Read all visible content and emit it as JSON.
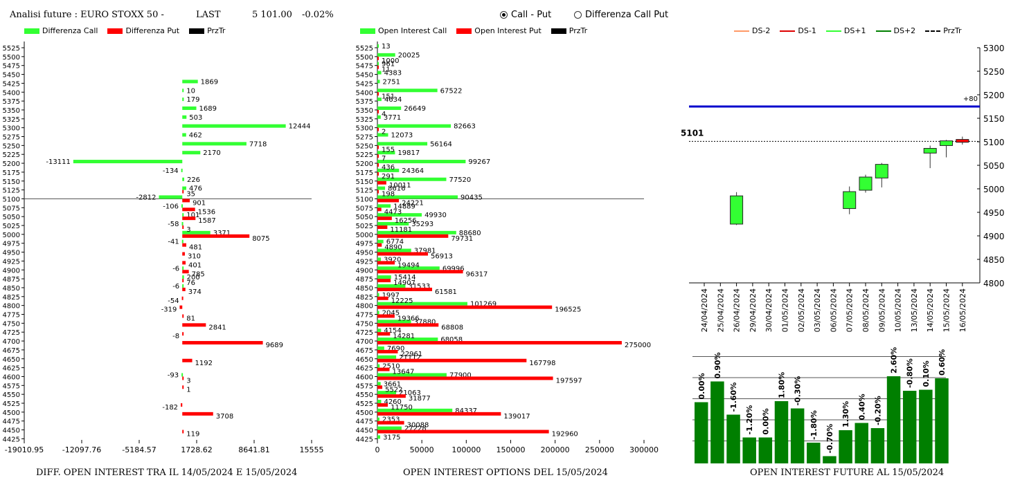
{
  "header": {
    "title": "Analisi future : EURO STOXX 50 -",
    "last_label": "LAST",
    "last_value": "5 101.00",
    "change": "-0.02%"
  },
  "mode_selector": {
    "options": [
      "Call - Put",
      "Differenza Call Put"
    ],
    "selected": "Call - Put"
  },
  "colors": {
    "call": "#33ff33",
    "put": "#ff0000",
    "price_line": "#000000",
    "ma_line": "#0000cc",
    "candle_up": "#33ff33",
    "candle_down": "#ff0000",
    "bar_green": "#007f00"
  },
  "footers": {
    "left": "DIFF. OPEN INTEREST TRA IL 14/05/2024 E 15/05/2024",
    "middle": "OPEN INTEREST OPTIONS DEL 15/05/2024",
    "right": "OPEN INTEREST FUTURE AL 15/05/2024"
  },
  "chart_data": [
    {
      "type": "bar",
      "orientation": "horizontal",
      "series": [
        {
          "name": "Differenza Call",
          "color": "#33ff33"
        },
        {
          "name": "Differenza Put",
          "color": "#ff0000"
        },
        {
          "name": "PrzTr",
          "color": "#000000"
        }
      ],
      "strikes": [
        5525,
        5500,
        5475,
        5450,
        5425,
        5400,
        5375,
        5350,
        5325,
        5300,
        5275,
        5250,
        5225,
        5200,
        5175,
        5150,
        5125,
        5100,
        5075,
        5050,
        5025,
        5000,
        4975,
        4950,
        4925,
        4900,
        4875,
        4850,
        4825,
        4800,
        4775,
        4750,
        4725,
        4700,
        4675,
        4650,
        4625,
        4600,
        4575,
        4550,
        4525,
        4500,
        4475,
        4450,
        4425
      ],
      "call_diff": [
        {
          "strike": 5425,
          "value": 1869
        },
        {
          "strike": 5400,
          "value": 10
        },
        {
          "strike": 5375,
          "value": 179
        },
        {
          "strike": 5350,
          "value": 1689
        },
        {
          "strike": 5325,
          "value": 503
        },
        {
          "strike": 5300,
          "value": 12444
        },
        {
          "strike": 5275,
          "value": 462
        },
        {
          "strike": 5250,
          "value": 7718
        },
        {
          "strike": 5225,
          "value": 2170
        },
        {
          "strike": 5200,
          "value": -13111
        },
        {
          "strike": 5175,
          "value": -134
        },
        {
          "strike": 5150,
          "value": 226
        },
        {
          "strike": 5125,
          "value": 476
        },
        {
          "strike": 5100,
          "value": -2812
        },
        {
          "strike": 5075,
          "value": -106
        },
        {
          "strike": 5050,
          "value": 101
        },
        {
          "strike": 5025,
          "value": -58
        },
        {
          "strike": 5000,
          "value": 3371
        },
        {
          "strike": 4975,
          "value": -41
        },
        {
          "strike": 4900,
          "value": -6
        },
        {
          "strike": 4875,
          "value": 200
        },
        {
          "strike": 4850,
          "value": -6
        },
        {
          "strike": 4600,
          "value": -93
        }
      ],
      "put_diff": [
        {
          "strike": 5125,
          "value": 35
        },
        {
          "strike": 5100,
          "value": 901
        },
        {
          "strike": 5075,
          "value": 1536
        },
        {
          "strike": 5050,
          "value": 1587
        },
        {
          "strike": 5025,
          "value": 3
        },
        {
          "strike": 5000,
          "value": 8075
        },
        {
          "strike": 4975,
          "value": 481
        },
        {
          "strike": 4950,
          "value": 310
        },
        {
          "strike": 4925,
          "value": 401
        },
        {
          "strike": 4900,
          "value": 785
        },
        {
          "strike": 4875,
          "value": 76
        },
        {
          "strike": 4850,
          "value": 374
        },
        {
          "strike": 4825,
          "value": -54
        },
        {
          "strike": 4800,
          "value": -319
        },
        {
          "strike": 4775,
          "value": 81
        },
        {
          "strike": 4750,
          "value": 2841
        },
        {
          "strike": 4725,
          "value": -8
        },
        {
          "strike": 4700,
          "value": 9689
        },
        {
          "strike": 4650,
          "value": 1192
        },
        {
          "strike": 4600,
          "value": 3
        },
        {
          "strike": 4575,
          "value": 1
        },
        {
          "strike": 4525,
          "value": -182
        },
        {
          "strike": 4500,
          "value": 3708
        },
        {
          "strike": 4450,
          "value": 119
        }
      ],
      "price_line": 5100,
      "xticks": [
        "-19010.95",
        "-12097.76",
        "-5184.57",
        "1728.62",
        "8641.81",
        "15555"
      ],
      "xlim": [
        -19010.95,
        15555
      ]
    },
    {
      "type": "bar",
      "orientation": "horizontal",
      "series": [
        {
          "name": "Open Interest Call",
          "color": "#33ff33"
        },
        {
          "name": "Open Interest Put",
          "color": "#ff0000"
        },
        {
          "name": "PrzTr",
          "color": "#000000"
        }
      ],
      "strikes": [
        5525,
        5500,
        5475,
        5450,
        5425,
        5400,
        5375,
        5350,
        5325,
        5300,
        5275,
        5250,
        5225,
        5200,
        5175,
        5150,
        5125,
        5100,
        5075,
        5050,
        5025,
        5000,
        4975,
        4950,
        4925,
        4900,
        4875,
        4850,
        4825,
        4800,
        4775,
        4750,
        4725,
        4700,
        4675,
        4650,
        4625,
        4600,
        4575,
        4550,
        4525,
        4500,
        4475,
        4450,
        4425
      ],
      "open_interest_call": [
        {
          "strike": 5525,
          "value": 13
        },
        {
          "strike": 5500,
          "value": 20025
        },
        {
          "strike": 5475,
          "value": 961
        },
        {
          "strike": 5450,
          "value": 4383
        },
        {
          "strike": 5425,
          "value": 2751
        },
        {
          "strike": 5400,
          "value": 67522
        },
        {
          "strike": 5375,
          "value": 4634
        },
        {
          "strike": 5350,
          "value": 26649
        },
        {
          "strike": 5325,
          "value": 3771
        },
        {
          "strike": 5300,
          "value": 82663
        },
        {
          "strike": 5275,
          "value": 12073
        },
        {
          "strike": 5250,
          "value": 56164
        },
        {
          "strike": 5225,
          "value": 19817
        },
        {
          "strike": 5200,
          "value": 99267
        },
        {
          "strike": 5175,
          "value": 24364
        },
        {
          "strike": 5150,
          "value": 77520
        },
        {
          "strike": 5125,
          "value": 8616
        },
        {
          "strike": 5100,
          "value": 90435
        },
        {
          "strike": 5075,
          "value": 14889
        },
        {
          "strike": 5050,
          "value": 49930
        },
        {
          "strike": 5025,
          "value": 35293
        },
        {
          "strike": 5000,
          "value": 88680
        },
        {
          "strike": 4975,
          "value": 6774
        },
        {
          "strike": 4950,
          "value": 37981
        },
        {
          "strike": 4925,
          "value": 3920
        },
        {
          "strike": 4900,
          "value": 69996
        },
        {
          "strike": 4875,
          "value": 15414
        },
        {
          "strike": 4850,
          "value": 31533
        },
        {
          "strike": 4825,
          "value": 1997
        },
        {
          "strike": 4800,
          "value": 101269
        },
        {
          "strike": 4775,
          "value": 2045
        },
        {
          "strike": 4750,
          "value": 37880
        },
        {
          "strike": 4725,
          "value": 4154
        },
        {
          "strike": 4700,
          "value": 68058
        },
        {
          "strike": 4675,
          "value": 7690
        },
        {
          "strike": 4650,
          "value": 21112
        },
        {
          "strike": 4625,
          "value": 2510
        },
        {
          "strike": 4600,
          "value": 77900
        },
        {
          "strike": 4575,
          "value": 3661
        },
        {
          "strike": 4550,
          "value": 21063
        },
        {
          "strike": 4525,
          "value": 4260
        },
        {
          "strike": 4500,
          "value": 84337
        },
        {
          "strike": 4475,
          "value": 2353
        },
        {
          "strike": 4450,
          "value": 27228
        },
        {
          "strike": 4425,
          "value": 3175
        }
      ],
      "open_interest_put": [
        {
          "strike": 5500,
          "value": 1000
        },
        {
          "strike": 5475,
          "value": 11
        },
        {
          "strike": 5400,
          "value": 151
        },
        {
          "strike": 5350,
          "value": 4
        },
        {
          "strike": 5300,
          "value": 2
        },
        {
          "strike": 5250,
          "value": 155
        },
        {
          "strike": 5225,
          "value": 7
        },
        {
          "strike": 5200,
          "value": 436
        },
        {
          "strike": 5175,
          "value": 291
        },
        {
          "strike": 5150,
          "value": 10011
        },
        {
          "strike": 5125,
          "value": 198
        },
        {
          "strike": 5100,
          "value": 24221
        },
        {
          "strike": 5075,
          "value": 4473
        },
        {
          "strike": 5050,
          "value": 16256
        },
        {
          "strike": 5025,
          "value": 11181
        },
        {
          "strike": 5000,
          "value": 79731
        },
        {
          "strike": 4975,
          "value": 4890
        },
        {
          "strike": 4950,
          "value": 56913
        },
        {
          "strike": 4925,
          "value": 19494
        },
        {
          "strike": 4900,
          "value": 96317
        },
        {
          "strike": 4875,
          "value": 14907
        },
        {
          "strike": 4850,
          "value": 61581
        },
        {
          "strike": 4825,
          "value": 12225
        },
        {
          "strike": 4800,
          "value": 196525
        },
        {
          "strike": 4775,
          "value": 19366
        },
        {
          "strike": 4750,
          "value": 68808
        },
        {
          "strike": 4725,
          "value": 14281
        },
        {
          "strike": 4700,
          "value": 275000
        },
        {
          "strike": 4675,
          "value": 22961
        },
        {
          "strike": 4650,
          "value": 167798
        },
        {
          "strike": 4625,
          "value": 13647
        },
        {
          "strike": 4600,
          "value": 197597
        },
        {
          "strike": 4575,
          "value": 5522
        },
        {
          "strike": 4550,
          "value": 31877
        },
        {
          "strike": 4525,
          "value": 11750
        },
        {
          "strike": 4500,
          "value": 139017
        },
        {
          "strike": 4475,
          "value": 30088
        },
        {
          "strike": 4450,
          "value": 192960
        }
      ],
      "price_line": 5100,
      "xticks": [
        "0",
        "50000",
        "100000",
        "150000",
        "200000",
        "250000",
        "300000"
      ],
      "xlim": [
        0,
        300000
      ]
    },
    {
      "type": "candlestick",
      "legend": [
        "DS-2",
        "DS-1",
        "DS+1",
        "DS+2",
        "PrzTr"
      ],
      "dates": [
        "24/04/2024",
        "25/04/2024",
        "26/04/2024",
        "29/04/2024",
        "30/04/2024",
        "01/05/2024",
        "02/05/2024",
        "03/05/2024",
        "06/05/2024",
        "07/05/2024",
        "08/05/2024",
        "09/05/2024",
        "10/05/2024",
        "13/05/2024",
        "14/05/2024",
        "15/05/2024",
        "16/05/2024"
      ],
      "candles": [
        {
          "date": "26/04/2024",
          "open": 4925,
          "close": 4985,
          "high": 4993,
          "low": 4923
        },
        {
          "date": "07/05/2024",
          "open": 4958,
          "close": 4994,
          "high": 5005,
          "low": 4946
        },
        {
          "date": "08/05/2024",
          "open": 4997,
          "close": 5025,
          "high": 5030,
          "low": 4992
        },
        {
          "date": "09/05/2024",
          "open": 5023,
          "close": 5052,
          "high": 5055,
          "low": 5003
        },
        {
          "date": "14/05/2024",
          "open": 5076,
          "close": 5086,
          "high": 5092,
          "low": 5044
        },
        {
          "date": "15/05/2024",
          "open": 5092,
          "close": 5102,
          "high": 5104,
          "low": 5067
        },
        {
          "date": "16/05/2024",
          "open": 5105,
          "close": 5099,
          "high": 5111,
          "low": 5094
        }
      ],
      "ma_level": 5175,
      "ma_label": "+80",
      "last_price": 5101,
      "last_label": "5101",
      "ylim": [
        4800,
        5300
      ],
      "yticks": [
        "5300",
        "5250",
        "5200",
        "5150",
        "5100",
        "5050",
        "5000",
        "4950",
        "4900",
        "4850",
        "4800"
      ]
    },
    {
      "type": "bar",
      "orientation": "vertical",
      "values": [
        {
          "label": "0.00%",
          "value": 0.0
        },
        {
          "label": "0.90%",
          "value": 0.9
        },
        {
          "label": "-1.60%",
          "value": -1.6
        },
        {
          "label": "-1.20%",
          "value": -1.2
        },
        {
          "label": "0.00%",
          "value": 0.0
        },
        {
          "label": "1.80%",
          "value": 1.8
        },
        {
          "label": "-0.30%",
          "value": -0.3
        },
        {
          "label": "-1.80%",
          "value": -1.8
        },
        {
          "label": "-0.70%",
          "value": -0.7
        },
        {
          "label": "1.30%",
          "value": 1.3
        },
        {
          "label": "0.40%",
          "value": 0.4
        },
        {
          "label": "-0.20%",
          "value": -0.2
        },
        {
          "label": "2.60%",
          "value": 2.6
        },
        {
          "label": "-0.80%",
          "value": -0.8
        },
        {
          "label": "0.10%",
          "value": 0.1
        },
        {
          "label": "0.60%",
          "value": 0.6
        }
      ],
      "relative_heights": [
        0.59,
        0.79,
        0.47,
        0.25,
        0.25,
        0.6,
        0.53,
        0.2,
        0.07,
        0.32,
        0.39,
        0.34,
        0.84,
        0.7,
        0.71,
        0.82
      ]
    }
  ]
}
